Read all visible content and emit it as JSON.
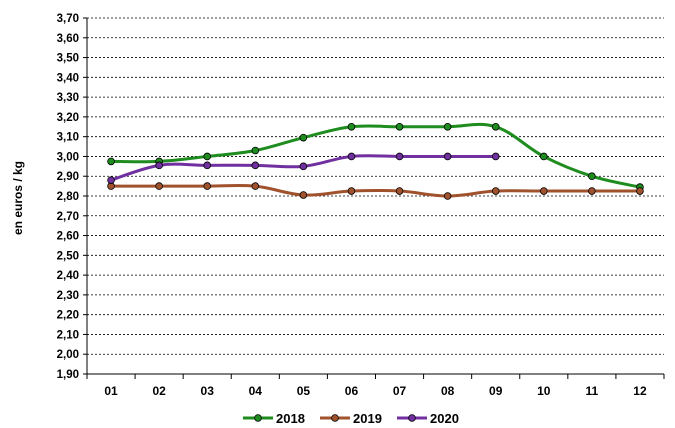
{
  "chart_data": {
    "type": "line",
    "ylabel": "en euros / kg",
    "xlabel": "",
    "categories": [
      "01",
      "02",
      "03",
      "04",
      "05",
      "06",
      "07",
      "08",
      "09",
      "10",
      "11",
      "12"
    ],
    "ylim": [
      1.9,
      3.7
    ],
    "y_ticks": [
      "1,90",
      "2,00",
      "2,10",
      "2,20",
      "2,30",
      "2,40",
      "2,50",
      "2,60",
      "2,70",
      "2,80",
      "2,90",
      "3,00",
      "3,10",
      "3,20",
      "3,30",
      "3,40",
      "3,50",
      "3,60",
      "3,70"
    ],
    "grid": "horizontal dashed",
    "legend_position": "bottom",
    "series": [
      {
        "name": "2018",
        "color": "#1e8c1e",
        "values": [
          2.975,
          2.975,
          3.0,
          3.03,
          3.095,
          3.15,
          3.15,
          3.15,
          3.15,
          3.0,
          2.9,
          2.845
        ]
      },
      {
        "name": "2019",
        "color": "#a0522d",
        "values": [
          2.85,
          2.85,
          2.85,
          2.85,
          2.805,
          2.825,
          2.825,
          2.8,
          2.825,
          2.825,
          2.825,
          2.825
        ]
      },
      {
        "name": "2020",
        "color": "#7030a0",
        "values": [
          2.88,
          2.955,
          2.955,
          2.955,
          2.95,
          3.0,
          3.0,
          3.0,
          3.0,
          null,
          null,
          null
        ]
      }
    ]
  }
}
